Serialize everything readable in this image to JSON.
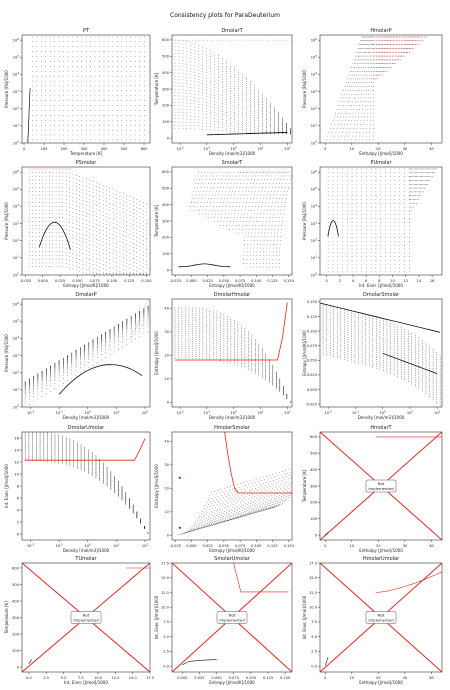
{
  "figure": {
    "title": "Consistency plots for ParaDeuterium"
  },
  "labels": {
    "p": "Pressure [Pa]/1000",
    "T": "Temperature [K]",
    "h": "Enthalpy [J/mol]/1000",
    "s": "Entropy [J/mol/K]/1000",
    "u": "Int. Ener. [J/mol]/1000",
    "d": "Density [mol/m3]/1000"
  },
  "not_implemented": "Not\nImplemented",
  "colors": {
    "saturation": "#e8231f",
    "points": "#111111",
    "axes": "#333333"
  },
  "chart_data": [
    {
      "id": "PT",
      "type": "scatter",
      "title": "PT",
      "xlabel": "Temperature [K]",
      "ylabel": "Pressure [Pa]/1000",
      "xscale": "linear",
      "yscale": "log",
      "xlim": [
        -10,
        630
      ],
      "ylim": [
        1,
        2000000
      ],
      "xticks": [
        0,
        100,
        200,
        300,
        400,
        500,
        600
      ],
      "yticks_exp": [
        0,
        1,
        2,
        3,
        4,
        5,
        6
      ],
      "grid": false
    },
    {
      "id": "DmolarT",
      "type": "scatter",
      "title": "DmolarT",
      "xlabel": "Density [mol/m3]/1000",
      "ylabel": "Temperature [K]",
      "xscale": "log",
      "yscale": "linear",
      "xlim": [
        0.005,
        150
      ],
      "ylim": [
        -30,
        630
      ],
      "xticks_exp": [
        -2,
        -1,
        0,
        1,
        2
      ],
      "yticks": [
        0,
        100,
        200,
        300,
        400,
        500,
        600
      ],
      "grid": false
    },
    {
      "id": "HmolarP",
      "type": "scatter",
      "title": "HmolarP",
      "xlabel": "Enthalpy [J/mol]/1000",
      "ylabel": "Pressure [Pa]/1000",
      "xscale": "linear",
      "yscale": "log",
      "xlim": [
        -2,
        44
      ],
      "ylim": [
        1,
        2000000
      ],
      "xticks": [
        0,
        10,
        20,
        30,
        40
      ],
      "yticks_exp": [
        0,
        1,
        2,
        3,
        4,
        5,
        6
      ],
      "grid": false
    },
    {
      "id": "PSmolar",
      "type": "scatter",
      "title": "PSmolar",
      "xlabel": "Entropy [J/mol/K]/1000",
      "ylabel": "Pressure [Pa]/1000",
      "xscale": "linear",
      "yscale": "log",
      "xlim": [
        -0.03,
        0.155
      ],
      "ylim": [
        1,
        2000000
      ],
      "xticks": [
        -0.025,
        0.0,
        0.025,
        0.05,
        0.075,
        0.1,
        0.125,
        0.15
      ],
      "xticklabels": [
        "-0.025",
        "0.000",
        "0.025",
        "0.050",
        "0.075",
        "0.100",
        "0.125",
        "0.150"
      ],
      "yticks_exp": [
        0,
        1,
        2,
        3,
        4,
        5,
        6
      ],
      "grid": false
    },
    {
      "id": "SmolarT",
      "type": "scatter",
      "title": "SmolarT",
      "xlabel": "Entropy [J/mol/K]/1000",
      "ylabel": "Temperature [K]",
      "xscale": "linear",
      "yscale": "linear",
      "xlim": [
        -0.03,
        0.155
      ],
      "ylim": [
        -30,
        630
      ],
      "xticks": [
        -0.025,
        0.0,
        0.025,
        0.05,
        0.075,
        0.1,
        0.125,
        0.15
      ],
      "xticklabels": [
        "-0.025",
        "0.000",
        "0.025",
        "0.050",
        "0.075",
        "0.100",
        "0.125",
        "0.150"
      ],
      "yticks": [
        0,
        100,
        200,
        300,
        400,
        500,
        600
      ],
      "grid": false
    },
    {
      "id": "PUmolar",
      "type": "scatter",
      "title": "PUmolar",
      "xlabel": "Int. Ener. [J/mol]/1000",
      "ylabel": "Pressure [Pa]/1000",
      "xscale": "linear",
      "yscale": "log",
      "xlim": [
        -1,
        17.5
      ],
      "ylim": [
        1,
        2000000
      ],
      "xticks": [
        0,
        2,
        4,
        6,
        8,
        10,
        12,
        14,
        16
      ],
      "yticks_exp": [
        0,
        1,
        2,
        3,
        4,
        5,
        6
      ],
      "grid": false
    },
    {
      "id": "DmolarP",
      "type": "scatter",
      "title": "DmolarP",
      "xlabel": "Density [mol/m3]/1000",
      "ylabel": "Pressure [Pa]/1000",
      "xscale": "log",
      "yscale": "log",
      "xlim": [
        0.005,
        150
      ],
      "ylim": [
        1,
        2000000
      ],
      "xticks_exp": [
        -2,
        -1,
        0,
        1,
        2
      ],
      "yticks_exp": [
        0,
        1,
        2,
        3,
        4,
        5,
        6
      ],
      "grid": false
    },
    {
      "id": "DmolarHmolar",
      "type": "scatter",
      "title": "DmolarHmolar",
      "xlabel": "Density [mol/m3]/1000",
      "ylabel": "Enthalpy [J/mol]/1000",
      "xscale": "log",
      "yscale": "linear",
      "xlim": [
        0.005,
        150
      ],
      "ylim": [
        -2,
        44
      ],
      "xticks_exp": [
        -2,
        -1,
        0,
        1,
        2
      ],
      "yticks": [
        0,
        10,
        20,
        30,
        40
      ],
      "grid": false
    },
    {
      "id": "DmolarSmolar",
      "type": "scatter",
      "title": "DmolarSmolar",
      "xlabel": "Density [mol/m3]/1000",
      "ylabel": "Entropy [J/mol/K]/1000",
      "xscale": "log",
      "yscale": "linear",
      "xlim": [
        0.005,
        150
      ],
      "ylim": [
        -0.03,
        0.155
      ],
      "xticks_exp": [
        -2,
        -1,
        0,
        1,
        2
      ],
      "yticks": [
        -0.025,
        0.0,
        0.025,
        0.05,
        0.075,
        0.1,
        0.125,
        0.15
      ],
      "yticklabels": [
        "-0.025",
        "0.000",
        "0.025",
        "0.050",
        "0.075",
        "0.100",
        "0.125",
        "0.150"
      ],
      "grid": false
    },
    {
      "id": "DmolarUmolar",
      "type": "scatter",
      "title": "DmolarUmolar",
      "xlabel": "Density [mol/m3]/1000",
      "ylabel": "Int. Ener. [J/mol]/1000",
      "xscale": "log",
      "yscale": "linear",
      "xlim": [
        0.005,
        150
      ],
      "ylim": [
        -1,
        17
      ],
      "xticks_exp": [
        -2,
        -1,
        0,
        1,
        2
      ],
      "yticks": [
        0,
        2,
        4,
        6,
        8,
        10,
        12,
        14,
        16
      ],
      "grid": false
    },
    {
      "id": "HmolarSmolar",
      "type": "scatter",
      "title": "HmolarSmolar",
      "xlabel": "Entropy [J/mol/K]/1000",
      "ylabel": "Enthalpy [J/mol]/1000",
      "xscale": "linear",
      "yscale": "linear",
      "xlim": [
        -0.03,
        0.155
      ],
      "ylim": [
        -2,
        44
      ],
      "xticks": [
        -0.025,
        0.0,
        0.025,
        0.05,
        0.075,
        0.1,
        0.125,
        0.15
      ],
      "xticklabels": [
        "-0.025",
        "0.000",
        "0.025",
        "0.050",
        "0.075",
        "0.100",
        "0.125",
        "0.150"
      ],
      "yticks": [
        0,
        10,
        20,
        30,
        40
      ],
      "grid": false
    },
    {
      "id": "HmolarT",
      "type": "line",
      "title": "HmolarT",
      "xlabel": "Enthalpy [J/mol]/1000",
      "ylabel": "Temperature [K]",
      "xscale": "linear",
      "yscale": "linear",
      "xlim": [
        -2,
        44
      ],
      "ylim": [
        -30,
        630
      ],
      "xticks": [
        0,
        10,
        20,
        30,
        40
      ],
      "yticks": [
        0,
        100,
        200,
        300,
        400,
        500,
        600
      ],
      "grid": false,
      "not_implemented": true
    },
    {
      "id": "TUmolar",
      "type": "line",
      "title": "TUmolar",
      "xlabel": "Int. Ener. [J/mol]/1000",
      "ylabel": "Temperature [K]",
      "xscale": "linear",
      "yscale": "linear",
      "xlim": [
        -1,
        17.5
      ],
      "ylim": [
        -30,
        630
      ],
      "xticks": [
        0,
        2.5,
        5,
        7.5,
        10,
        12.5,
        15,
        17.5
      ],
      "xticklabels": [
        "0.0",
        "2.5",
        "5.0",
        "7.5",
        "10.0",
        "12.5",
        "15.0",
        "17.5"
      ],
      "yticks": [
        0,
        100,
        200,
        300,
        400,
        500,
        600
      ],
      "grid": false,
      "not_implemented": true
    },
    {
      "id": "SmolarUmolar",
      "type": "line",
      "title": "SmolarUmolar",
      "xlabel": "Entropy [J/mol/K]/1000",
      "ylabel": "Int. Ener. [J/mol]/1000",
      "xscale": "linear",
      "yscale": "linear",
      "xlim": [
        -0.015,
        0.16
      ],
      "ylim": [
        -1,
        17.5
      ],
      "xticks": [
        0.0,
        0.025,
        0.05,
        0.075,
        0.1,
        0.125,
        0.15
      ],
      "xticklabels": [
        "0.000",
        "0.025",
        "0.050",
        "0.075",
        "0.100",
        "0.125",
        "0.150"
      ],
      "yticks": [
        0,
        2.5,
        5,
        7.5,
        10,
        12.5,
        15,
        17.5
      ],
      "yticklabels": [
        "0.0",
        "2.5",
        "5.0",
        "7.5",
        "10.0",
        "12.5",
        "15.0",
        "17.5"
      ],
      "grid": false,
      "not_implemented": true
    },
    {
      "id": "HmolarUmolar",
      "type": "line",
      "title": "HmolarUmolar",
      "xlabel": "Enthalpy [J/mol]/1000",
      "ylabel": "Int. Ener. [J/mol]/1000",
      "xscale": "linear",
      "yscale": "linear",
      "xlim": [
        -2,
        44
      ],
      "ylim": [
        -1,
        17.5
      ],
      "xticks": [
        0,
        10,
        20,
        30,
        40
      ],
      "yticks": [
        0,
        2.5,
        5,
        7.5,
        10,
        12.5,
        15,
        17.5
      ],
      "yticklabels": [
        "0.0",
        "2.5",
        "5.0",
        "7.5",
        "10.0",
        "12.5",
        "15.0",
        "17.5"
      ],
      "grid": false,
      "not_implemented": true
    }
  ]
}
